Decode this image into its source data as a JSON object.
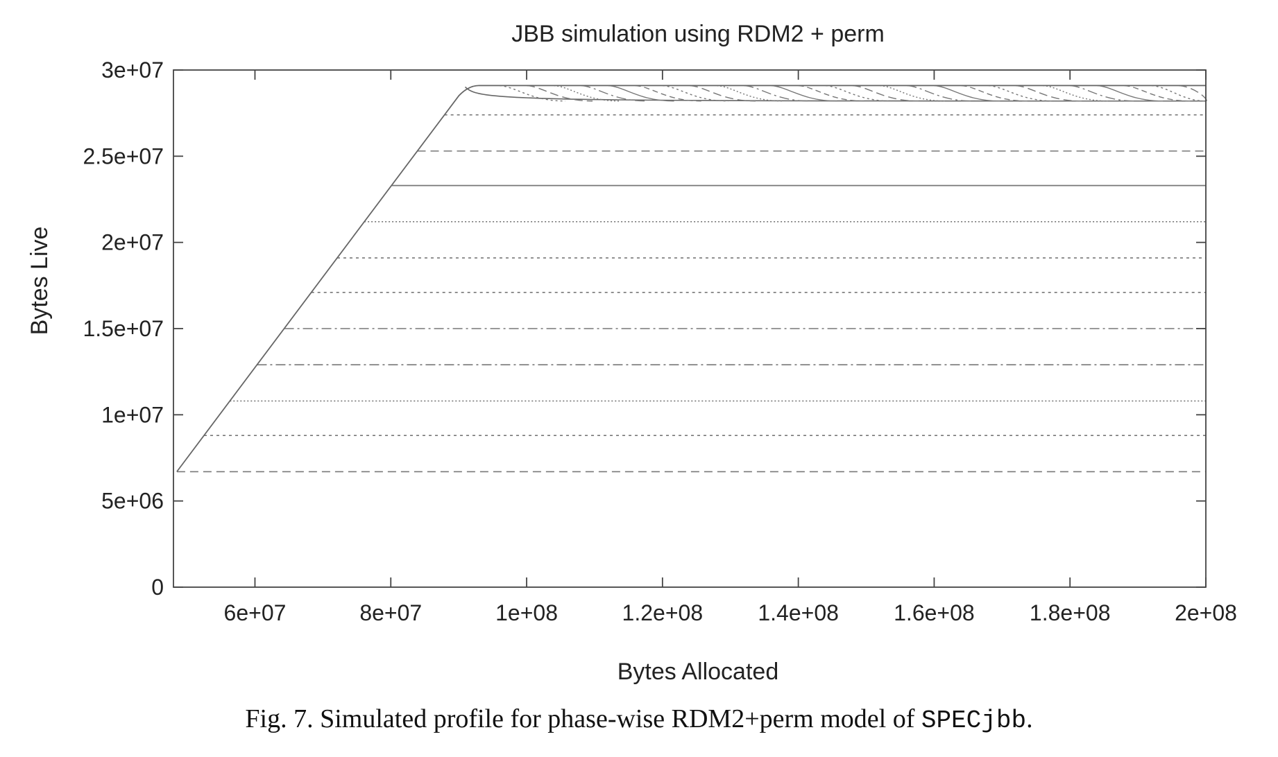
{
  "caption": {
    "prefix": "Fig. 7. Simulated profile for phase-wise RDM2+perm model of ",
    "code": "SPECjbb",
    "suffix": "."
  },
  "chart_data": {
    "type": "line",
    "title": "JBB simulation using RDM2 + perm",
    "xlabel": "Bytes Allocated",
    "ylabel": "Bytes Live",
    "xlim": [
      48000000,
      200000000
    ],
    "ylim": [
      0,
      30000000
    ],
    "xticks": [
      {
        "value": 60000000,
        "label": "6e+07"
      },
      {
        "value": 80000000,
        "label": "8e+07"
      },
      {
        "value": 100000000,
        "label": "1e+08"
      },
      {
        "value": 120000000,
        "label": "1.2e+08"
      },
      {
        "value": 140000000,
        "label": "1.4e+08"
      },
      {
        "value": 160000000,
        "label": "1.6e+08"
      },
      {
        "value": 180000000,
        "label": "1.8e+08"
      },
      {
        "value": 200000000,
        "label": "2e+08"
      }
    ],
    "yticks": [
      {
        "value": 0,
        "label": "0"
      },
      {
        "value": 5000000,
        "label": "5e+06"
      },
      {
        "value": 10000000,
        "label": "1e+07"
      },
      {
        "value": 15000000,
        "label": "1.5e+07"
      },
      {
        "value": 20000000,
        "label": "2e+07"
      },
      {
        "value": 25000000,
        "label": "2.5e+07"
      },
      {
        "value": 30000000,
        "label": "3e+07"
      }
    ],
    "grid": false,
    "legend": "none",
    "ramp": {
      "start": [
        48500000,
        6700000
      ],
      "knee": [
        90000000,
        28500000
      ],
      "peak_x": 93000000,
      "peak_y": 29100000
    },
    "plateau": {
      "upper_y": 29100000,
      "lower_y": 28200000,
      "x_end": 200000000,
      "decay_curves_start_x": [
        96000000,
        100000000,
        104000000,
        108000000,
        112000000,
        116000000,
        120000000,
        124000000,
        128000000,
        132000000,
        136000000,
        140000000,
        144000000,
        148000000,
        152000000,
        156000000,
        160000000,
        164000000,
        168000000,
        172000000,
        176000000,
        180000000,
        184000000,
        188000000,
        192000000,
        196000000
      ]
    },
    "phase_levels": [
      {
        "y": 6700000,
        "style": "dashed"
      },
      {
        "y": 8800000,
        "style": "dotted"
      },
      {
        "y": 10800000,
        "style": "fine-dotted"
      },
      {
        "y": 12900000,
        "style": "dash-dot"
      },
      {
        "y": 15000000,
        "style": "dash-dot"
      },
      {
        "y": 17100000,
        "style": "dotted"
      },
      {
        "y": 19100000,
        "style": "dotted"
      },
      {
        "y": 21200000,
        "style": "fine-dotted"
      },
      {
        "y": 23300000,
        "style": "solid"
      },
      {
        "y": 25300000,
        "style": "dashed"
      },
      {
        "y": 27400000,
        "style": "dotted"
      }
    ]
  }
}
